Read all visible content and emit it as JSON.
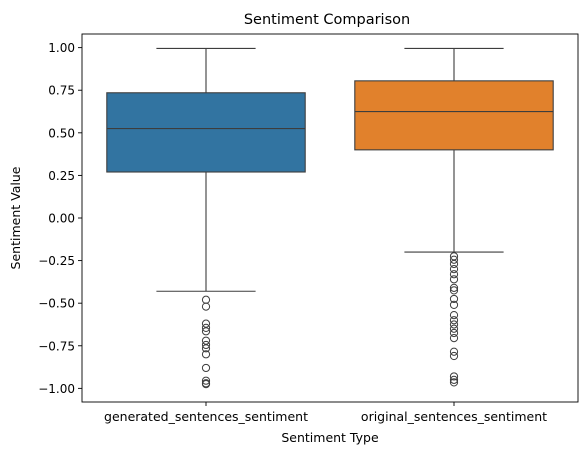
{
  "chart_data": {
    "type": "box",
    "title": "Sentiment Comparison",
    "xlabel": "Sentiment Type",
    "ylabel": "Sentiment Value",
    "ylim": [
      -1.08,
      1.08
    ],
    "yticks": [
      1.0,
      0.75,
      0.5,
      0.25,
      0.0,
      -0.25,
      -0.5,
      -0.75,
      -1.0
    ],
    "ytick_labels": [
      "1.00",
      "0.75",
      "0.50",
      "0.25",
      "0.00",
      "−0.25",
      "−0.50",
      "−0.75",
      "−1.00"
    ],
    "grid": false,
    "legend": "none",
    "categories": [
      "generated_sentences_sentiment",
      "original_sentences_sentiment"
    ],
    "boxes": [
      {
        "category": "generated_sentences_sentiment",
        "color": "#3274a1",
        "whisker_low": -0.43,
        "q1": 0.27,
        "median": 0.525,
        "q3": 0.735,
        "whisker_high": 0.995,
        "outliers": [
          -0.48,
          -0.52,
          -0.62,
          -0.645,
          -0.665,
          -0.72,
          -0.745,
          -0.765,
          -0.8,
          -0.88,
          -0.955,
          -0.97,
          -0.975
        ]
      },
      {
        "category": "original_sentences_sentiment",
        "color": "#e1812c",
        "whisker_low": -0.2,
        "q1": 0.4,
        "median": 0.625,
        "q3": 0.805,
        "whisker_high": 0.995,
        "outliers": [
          -0.225,
          -0.245,
          -0.27,
          -0.3,
          -0.33,
          -0.36,
          -0.41,
          -0.425,
          -0.475,
          -0.51,
          -0.57,
          -0.6,
          -0.625,
          -0.65,
          -0.675,
          -0.705,
          -0.785,
          -0.81,
          -0.93,
          -0.95,
          -0.965
        ]
      }
    ]
  }
}
